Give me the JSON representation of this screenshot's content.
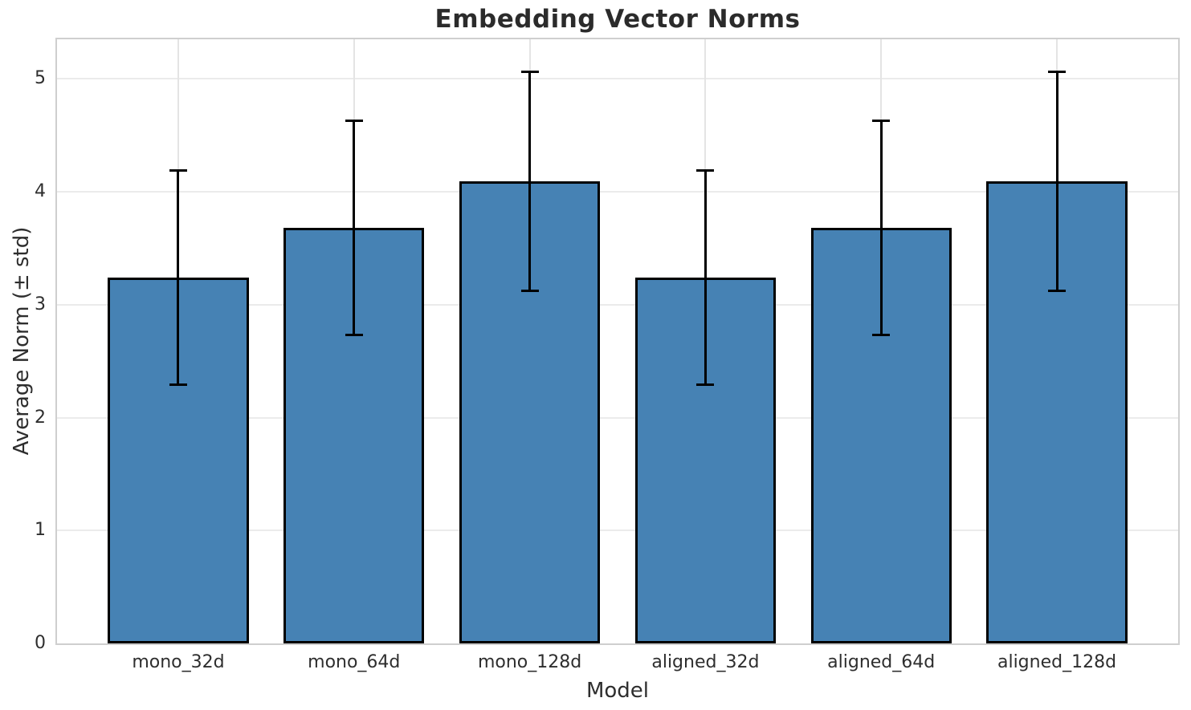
{
  "chart_data": {
    "type": "bar",
    "title": "Embedding Vector Norms",
    "xlabel": "Model",
    "ylabel": "Average Norm (± std)",
    "categories": [
      "mono_32d",
      "mono_64d",
      "mono_128d",
      "aligned_32d",
      "aligned_64d",
      "aligned_128d"
    ],
    "values": [
      3.24,
      3.68,
      4.09,
      3.24,
      3.68,
      4.09
    ],
    "errors": [
      0.95,
      0.95,
      0.97,
      0.95,
      0.95,
      0.97
    ],
    "error_ranges": [
      [
        2.29,
        4.19
      ],
      [
        2.73,
        4.63
      ],
      [
        3.12,
        5.06
      ],
      [
        2.29,
        4.19
      ],
      [
        2.73,
        4.63
      ],
      [
        3.12,
        5.06
      ]
    ],
    "yticks": [
      0,
      1,
      2,
      3,
      4,
      5
    ],
    "ylim": [
      0,
      5.35
    ],
    "grid": true,
    "legend": "none",
    "bar_color": "#4682b4",
    "bar_edge_color": "#000000",
    "errorbar_color": "#000000",
    "grid_color": "#ebebeb",
    "spine_color": "#cfcfcf",
    "text_color": "#2e2e2e",
    "title_color": "#2b2b2b"
  }
}
